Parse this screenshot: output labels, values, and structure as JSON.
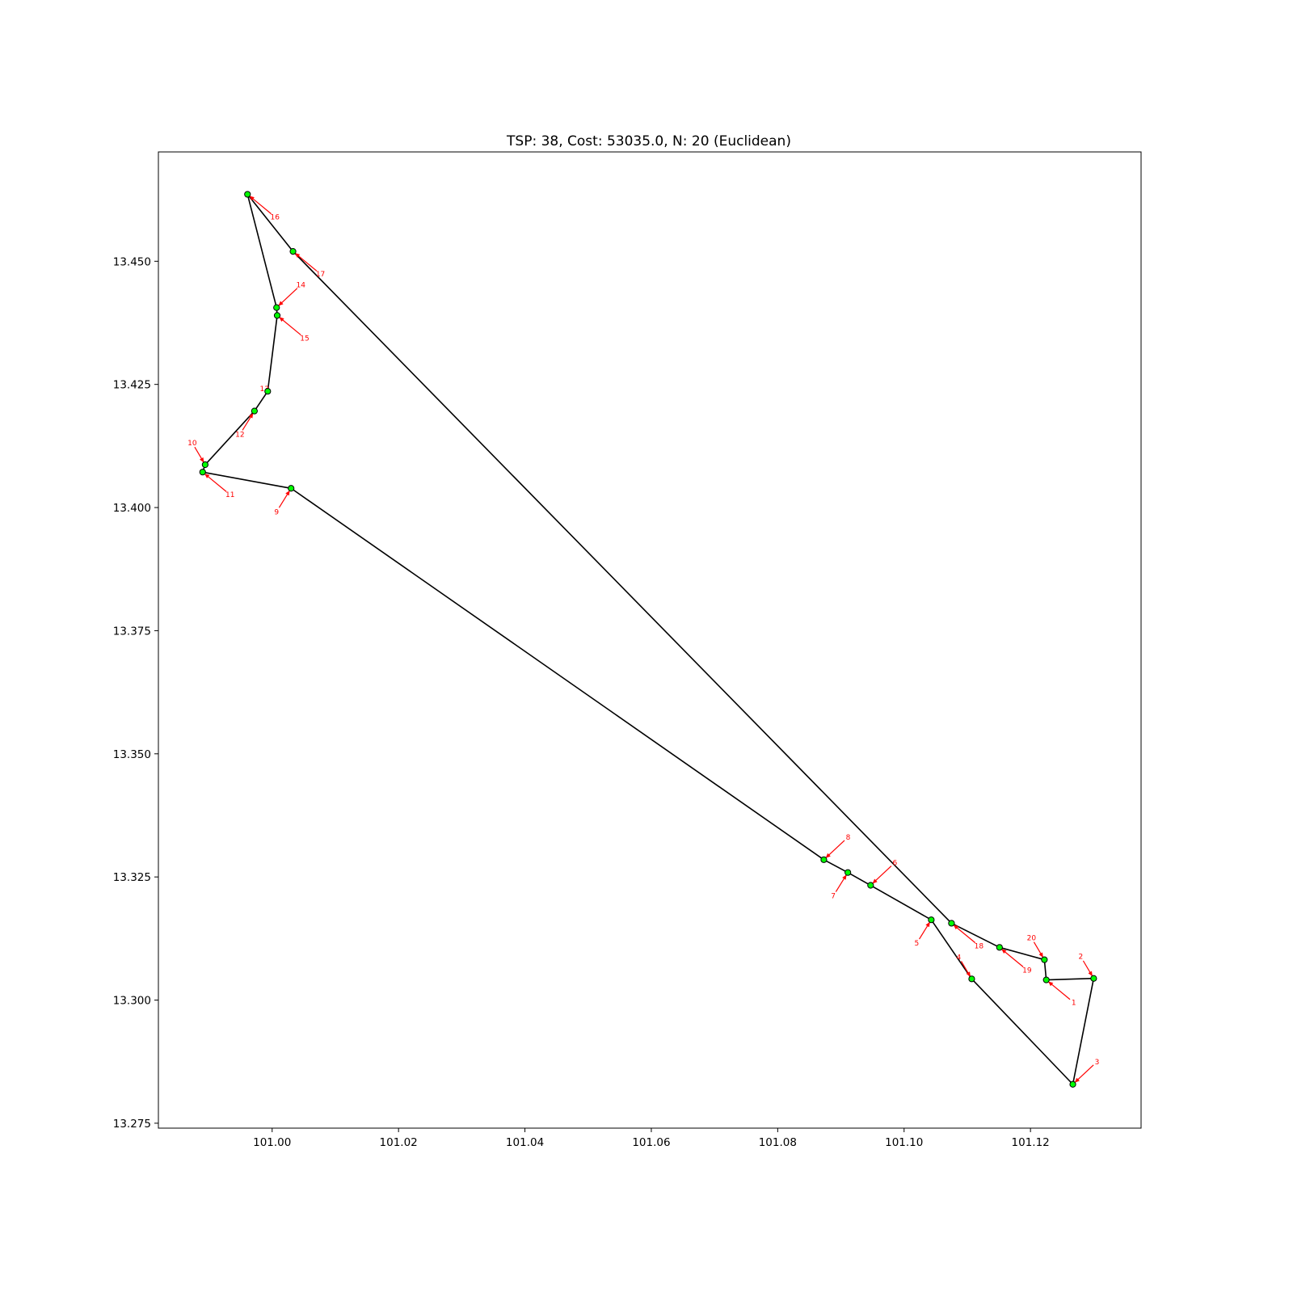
{
  "chart_data": {
    "type": "scatter",
    "title": "TSP: 38, Cost: 53035.0, N: 20 (Euclidean)",
    "xlabel": "",
    "ylabel": "",
    "xlim": [
      100.982,
      101.1375
    ],
    "ylim": [
      13.274,
      13.4722
    ],
    "grid": false,
    "x_ticks": [
      {
        "value": 101.0,
        "label": "101.00"
      },
      {
        "value": 101.02,
        "label": "101.02"
      },
      {
        "value": 101.04,
        "label": "101.04"
      },
      {
        "value": 101.06,
        "label": "101.06"
      },
      {
        "value": 101.08,
        "label": "101.08"
      },
      {
        "value": 101.1,
        "label": "101.10"
      },
      {
        "value": 101.12,
        "label": "101.12"
      }
    ],
    "y_ticks": [
      {
        "value": 13.275,
        "label": "13.275"
      },
      {
        "value": 13.3,
        "label": "13.300"
      },
      {
        "value": 13.325,
        "label": "13.325"
      },
      {
        "value": 13.35,
        "label": "13.350"
      },
      {
        "value": 13.375,
        "label": "13.375"
      },
      {
        "value": 13.4,
        "label": "13.400"
      },
      {
        "value": 13.425,
        "label": "13.425"
      },
      {
        "value": 13.45,
        "label": "13.450"
      }
    ],
    "point_color": "#00ff00",
    "route_color": "#000000",
    "label_color": "#ff0000",
    "points": [
      {
        "label": "1",
        "x": 101.1225,
        "y": 13.3041,
        "anchor": "se"
      },
      {
        "label": "2",
        "x": 101.13,
        "y": 13.3044,
        "anchor": "nw"
      },
      {
        "label": "3",
        "x": 101.1267,
        "y": 13.2829,
        "anchor": "ne"
      },
      {
        "label": "4",
        "x": 101.1107,
        "y": 13.3043,
        "anchor": "nw"
      },
      {
        "label": "5",
        "x": 101.1043,
        "y": 13.3163,
        "anchor": "sw"
      },
      {
        "label": "6",
        "x": 101.0947,
        "y": 13.3233,
        "anchor": "ne"
      },
      {
        "label": "7",
        "x": 101.0911,
        "y": 13.3259,
        "anchor": "sw"
      },
      {
        "label": "8",
        "x": 101.0873,
        "y": 13.3285,
        "anchor": "ne"
      },
      {
        "label": "9",
        "x": 101.003,
        "y": 13.4039,
        "anchor": "sw"
      },
      {
        "label": "10",
        "x": 100.9894,
        "y": 13.4087,
        "anchor": "nw"
      },
      {
        "label": "11",
        "x": 100.989,
        "y": 13.4072,
        "anchor": "se"
      },
      {
        "label": "12",
        "x": 100.9972,
        "y": 13.4196,
        "anchor": "sw"
      },
      {
        "label": "13",
        "x": 100.9993,
        "y": 13.4236,
        "anchor": "sw-close"
      },
      {
        "label": "14",
        "x": 101.0007,
        "y": 13.4406,
        "anchor": "ne"
      },
      {
        "label": "15",
        "x": 101.0008,
        "y": 13.439,
        "anchor": "se"
      },
      {
        "label": "16",
        "x": 100.9961,
        "y": 13.4636,
        "anchor": "se"
      },
      {
        "label": "17",
        "x": 101.0033,
        "y": 13.452,
        "anchor": "se"
      },
      {
        "label": "18",
        "x": 101.1075,
        "y": 13.3156,
        "anchor": "se"
      },
      {
        "label": "19",
        "x": 101.1151,
        "y": 13.3107,
        "anchor": "se"
      },
      {
        "label": "20",
        "x": 101.1222,
        "y": 13.3082,
        "anchor": "nw"
      }
    ],
    "route": [
      "1",
      "2",
      "3",
      "4",
      "5",
      "6",
      "7",
      "8",
      "9",
      "11",
      "10",
      "12",
      "13",
      "15",
      "14",
      "16",
      "17",
      "18",
      "19",
      "20",
      "1"
    ]
  }
}
